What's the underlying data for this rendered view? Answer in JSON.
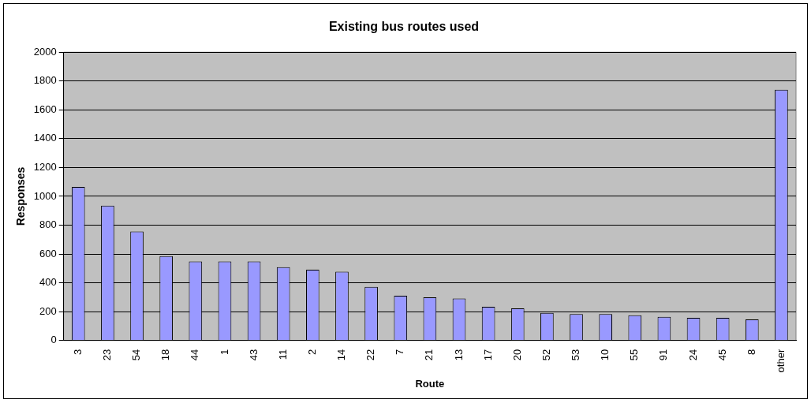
{
  "chart_data": {
    "type": "bar",
    "title": "Existing bus routes used",
    "xlabel": "Route",
    "ylabel": "Responses",
    "categories": [
      "3",
      "23",
      "54",
      "18",
      "44",
      "1",
      "43",
      "11",
      "2",
      "14",
      "22",
      "7",
      "21",
      "13",
      "17",
      "20",
      "52",
      "53",
      "10",
      "55",
      "91",
      "24",
      "45",
      "8",
      "other"
    ],
    "values": [
      1065,
      935,
      757,
      586,
      549,
      549,
      549,
      509,
      491,
      478,
      372,
      310,
      299,
      291,
      234,
      223,
      192,
      184,
      184,
      175,
      164,
      157,
      157,
      146,
      1740
    ],
    "color": "#9999ff",
    "ylim": [
      0,
      2000
    ],
    "yticks": [
      0,
      200,
      400,
      600,
      800,
      1000,
      1200,
      1400,
      1600,
      1800,
      2000
    ],
    "grid": "y",
    "legend": false
  }
}
